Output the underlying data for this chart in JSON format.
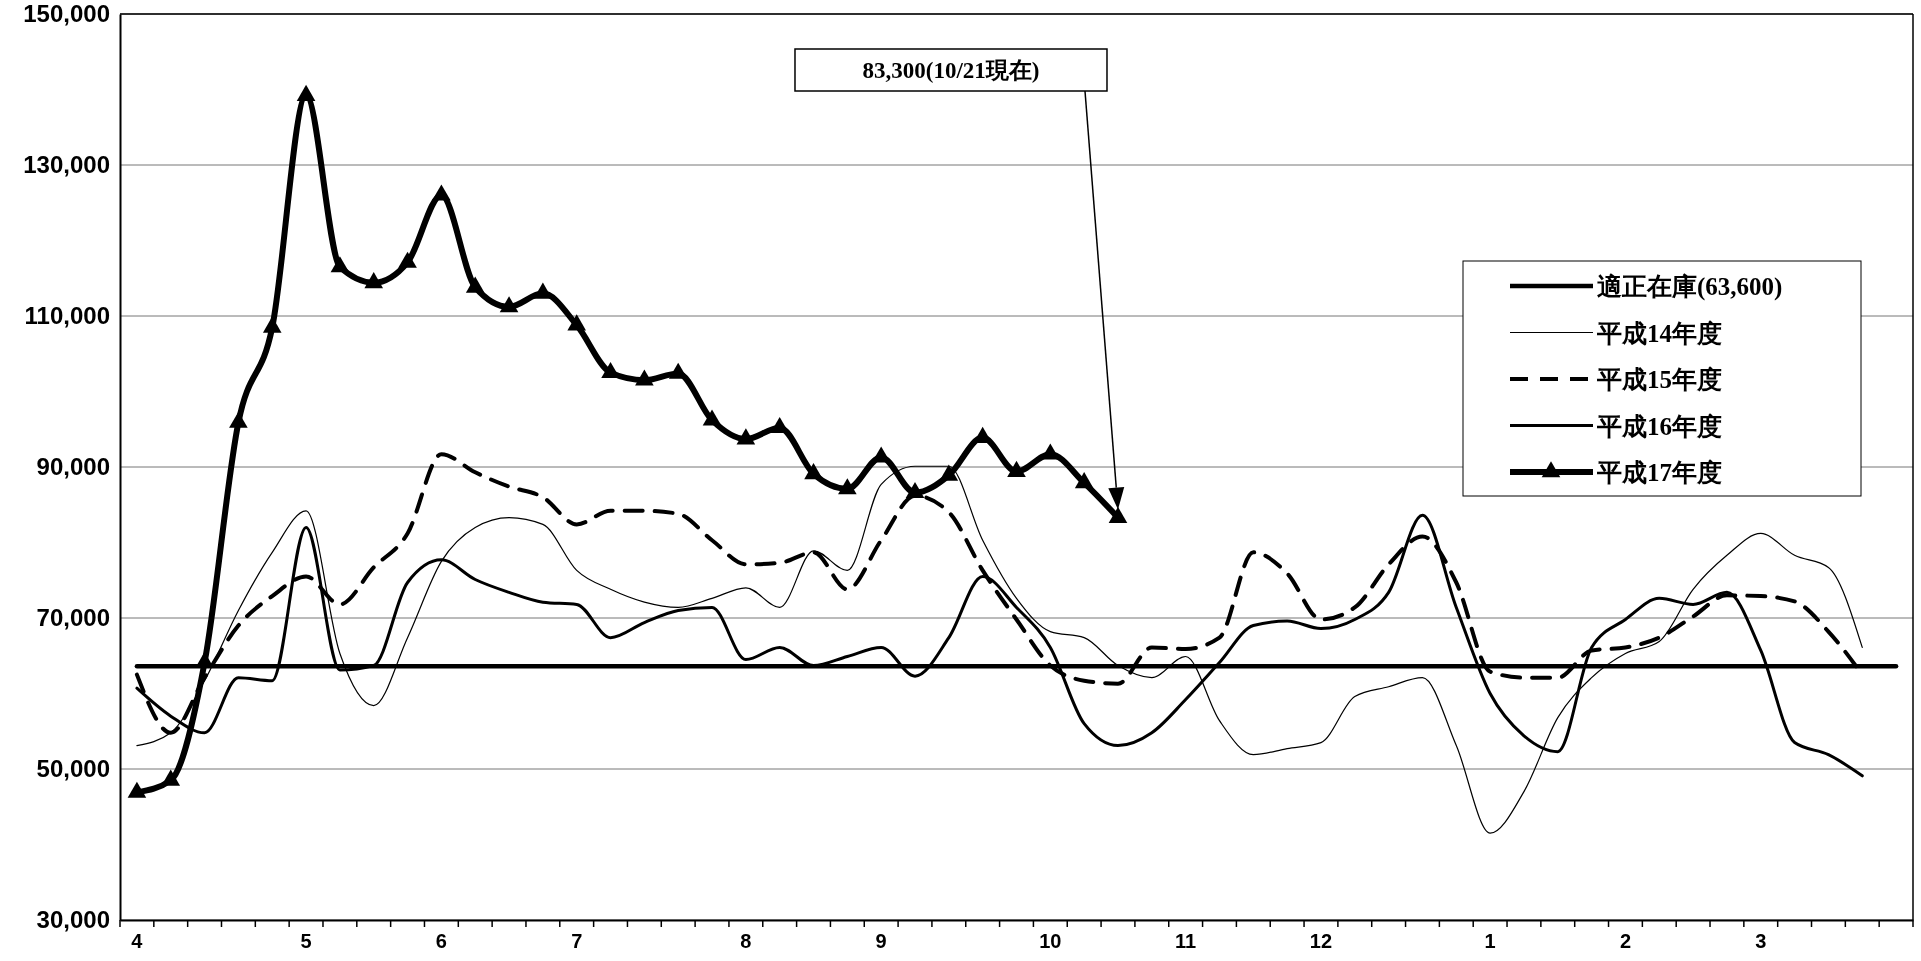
{
  "chart_data": {
    "type": "line",
    "categories": [
      "4",
      null,
      null,
      null,
      null,
      "5",
      null,
      null,
      null,
      "6",
      null,
      null,
      null,
      "7",
      null,
      null,
      null,
      null,
      "8",
      null,
      null,
      null,
      "9",
      null,
      null,
      null,
      null,
      "10",
      null,
      null,
      null,
      "11",
      null,
      null,
      null,
      "12",
      null,
      null,
      null,
      null,
      "1",
      null,
      null,
      null,
      "2",
      null,
      null,
      null,
      "3",
      null,
      null,
      null,
      null
    ],
    "ylim": [
      30000,
      150000
    ],
    "yticks": [
      {
        "value": 30000,
        "label": "30,000"
      },
      {
        "value": 50000,
        "label": "50,000"
      },
      {
        "value": 70000,
        "label": "70,000"
      },
      {
        "value": 90000,
        "label": "90,000"
      },
      {
        "value": 110000,
        "label": "110,000"
      },
      {
        "value": 130000,
        "label": "130,000"
      },
      {
        "value": 150000,
        "label": "150,000"
      }
    ],
    "grid": "y",
    "legend": "right",
    "series": [
      {
        "name": "適正在庫(63,600)",
        "color": "#000000",
        "line_style": "solid",
        "values": [
          63600,
          63600,
          63600,
          63600,
          63600,
          63600,
          63600,
          63600,
          63600,
          63600,
          63600,
          63600,
          63600,
          63600,
          63600,
          63600,
          63600,
          63600,
          63600,
          63600,
          63600,
          63600,
          63600,
          63600,
          63600,
          63600,
          63600,
          63600,
          63600,
          63600,
          63600,
          63600,
          63600,
          63600,
          63600,
          63600,
          63600,
          63600,
          63600,
          63600,
          63600,
          63600,
          63600,
          63600,
          63600,
          63600,
          63600,
          63600,
          63600,
          63600,
          63600,
          63600,
          63600
        ]
      },
      {
        "name": "平成14年度",
        "color": "#000000",
        "line_style": "solid",
        "values": [
          53100,
          54800,
          61700,
          71000,
          78700,
          84200,
          65300,
          58400,
          67400,
          77500,
          82000,
          83300,
          82400,
          76300,
          73800,
          72100,
          71400,
          72600,
          74000,
          71400,
          78900,
          76300,
          87700,
          90100,
          90100,
          80300,
          72600,
          68200,
          67400,
          63700,
          62100,
          64900,
          56400,
          51900,
          52700,
          53500,
          59600,
          60900,
          62100,
          53100,
          41500,
          47000,
          56800,
          62100,
          65300,
          66900,
          73800,
          78300,
          81200,
          78300,
          76700,
          66100,
          null
        ]
      },
      {
        "name": "平成15年度",
        "color": "#000000",
        "line_style": "dashed",
        "values": [
          62500,
          54800,
          62100,
          69000,
          72900,
          75500,
          71800,
          76700,
          81200,
          91700,
          89300,
          87400,
          86000,
          82400,
          84200,
          84200,
          83800,
          80300,
          77100,
          77300,
          78700,
          73800,
          80300,
          86200,
          84000,
          76300,
          69800,
          63700,
          61700,
          61300,
          66100,
          65900,
          67400,
          78700,
          75900,
          69800,
          71400,
          77100,
          80800,
          74700,
          62900,
          62100,
          62100,
          65700,
          66100,
          67400,
          70200,
          73000,
          72900,
          72200,
          68200,
          62500,
          null
        ]
      },
      {
        "name": "平成16年度",
        "color": "#000000",
        "line_style": "solid",
        "values": [
          60700,
          57000,
          54800,
          62100,
          61700,
          82000,
          63100,
          63700,
          74700,
          77700,
          75100,
          73400,
          72100,
          71800,
          67400,
          69400,
          71000,
          71400,
          64500,
          66100,
          63700,
          64900,
          66100,
          62300,
          67400,
          75500,
          71400,
          66100,
          56000,
          53100,
          54800,
          59200,
          64100,
          69000,
          69600,
          68600,
          69800,
          73400,
          83600,
          71400,
          60000,
          54400,
          52300,
          66100,
          69800,
          72600,
          71800,
          73400,
          65700,
          53500,
          51900,
          49100,
          null
        ]
      },
      {
        "name": "平成17年度",
        "color": "#000000",
        "line_style": "solid",
        "marker": "triangle",
        "values": [
          46900,
          48500,
          64100,
          95900,
          108500,
          139200,
          116500,
          114400,
          117100,
          126000,
          113800,
          111200,
          113000,
          108800,
          102500,
          101500,
          102400,
          96200,
          93700,
          95200,
          89100,
          87100,
          91300,
          86600,
          88900,
          93900,
          89400,
          91700,
          87900,
          83300,
          null,
          null,
          null,
          null,
          null,
          null,
          null,
          null,
          null,
          null,
          null,
          null,
          null,
          null,
          null,
          null,
          null,
          null,
          null,
          null,
          null,
          null,
          null
        ]
      }
    ],
    "annotations": [
      "83,300(10/21現在)"
    ]
  }
}
